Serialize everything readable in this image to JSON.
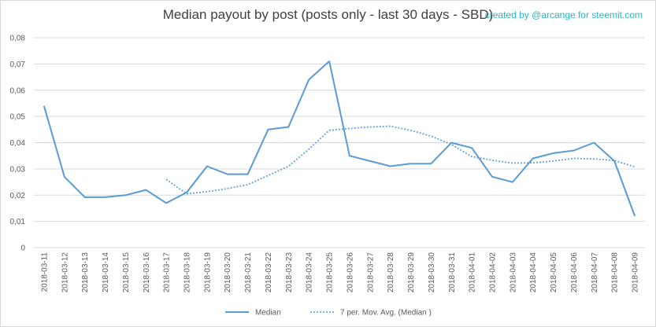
{
  "credit": "created by @arcange for steemit.com",
  "colors": {
    "series": "#5b9bd5",
    "grid": "#d9d9d9",
    "text": "#595959",
    "credit": "#2ab5c6"
  },
  "chart_data": {
    "type": "line",
    "title": "Median payout by post (posts only - last 30 days - SBD)",
    "x": [
      "2018-03-11",
      "2018-03-12",
      "2018-03-13",
      "2018-03-14",
      "2018-03-15",
      "2018-03-16",
      "2018-03-17",
      "2018-03-18",
      "2018-03-19",
      "2018-03-20",
      "2018-03-21",
      "2018-03-22",
      "2018-03-23",
      "2018-03-24",
      "2018-03-25",
      "2018-03-26",
      "2018-03-27",
      "2018-03-28",
      "2018-03-29",
      "2018-03-30",
      "2018-03-31",
      "2018-04-01",
      "2018-04-02",
      "2018-04-03",
      "2018-04-04",
      "2018-04-05",
      "2018-04-06",
      "2018-04-07",
      "2018-04-08",
      "2018-04-09"
    ],
    "yticks": [
      "0",
      "0,01",
      "0,02",
      "0,03",
      "0,04",
      "0,05",
      "0,06",
      "0,07",
      "0,08"
    ],
    "ylim": [
      0,
      0.08
    ],
    "grid": true,
    "legend": "bottom",
    "series": [
      {
        "name": "Median",
        "style": "solid",
        "values": [
          0.054,
          0.027,
          0.0192,
          0.0192,
          0.02,
          0.022,
          0.017,
          0.021,
          0.031,
          0.028,
          0.028,
          0.045,
          0.046,
          0.064,
          0.071,
          0.035,
          0.033,
          0.031,
          0.032,
          0.032,
          0.04,
          0.038,
          0.027,
          0.025,
          0.034,
          0.036,
          0.037,
          0.04,
          0.033,
          0.012
        ]
      },
      {
        "name": "7 per. Mov. Avg. (Median )",
        "style": "dotted",
        "values": [
          null,
          null,
          null,
          null,
          null,
          null,
          0.026,
          0.0205,
          0.0213,
          0.0225,
          0.024,
          0.0275,
          0.031,
          0.0375,
          0.0447,
          0.0454,
          0.046,
          0.0463,
          0.0447,
          0.0425,
          0.0393,
          0.0347,
          0.0333,
          0.0322,
          0.0323,
          0.033,
          0.034,
          0.0338,
          0.0332,
          0.0308
        ]
      }
    ]
  }
}
